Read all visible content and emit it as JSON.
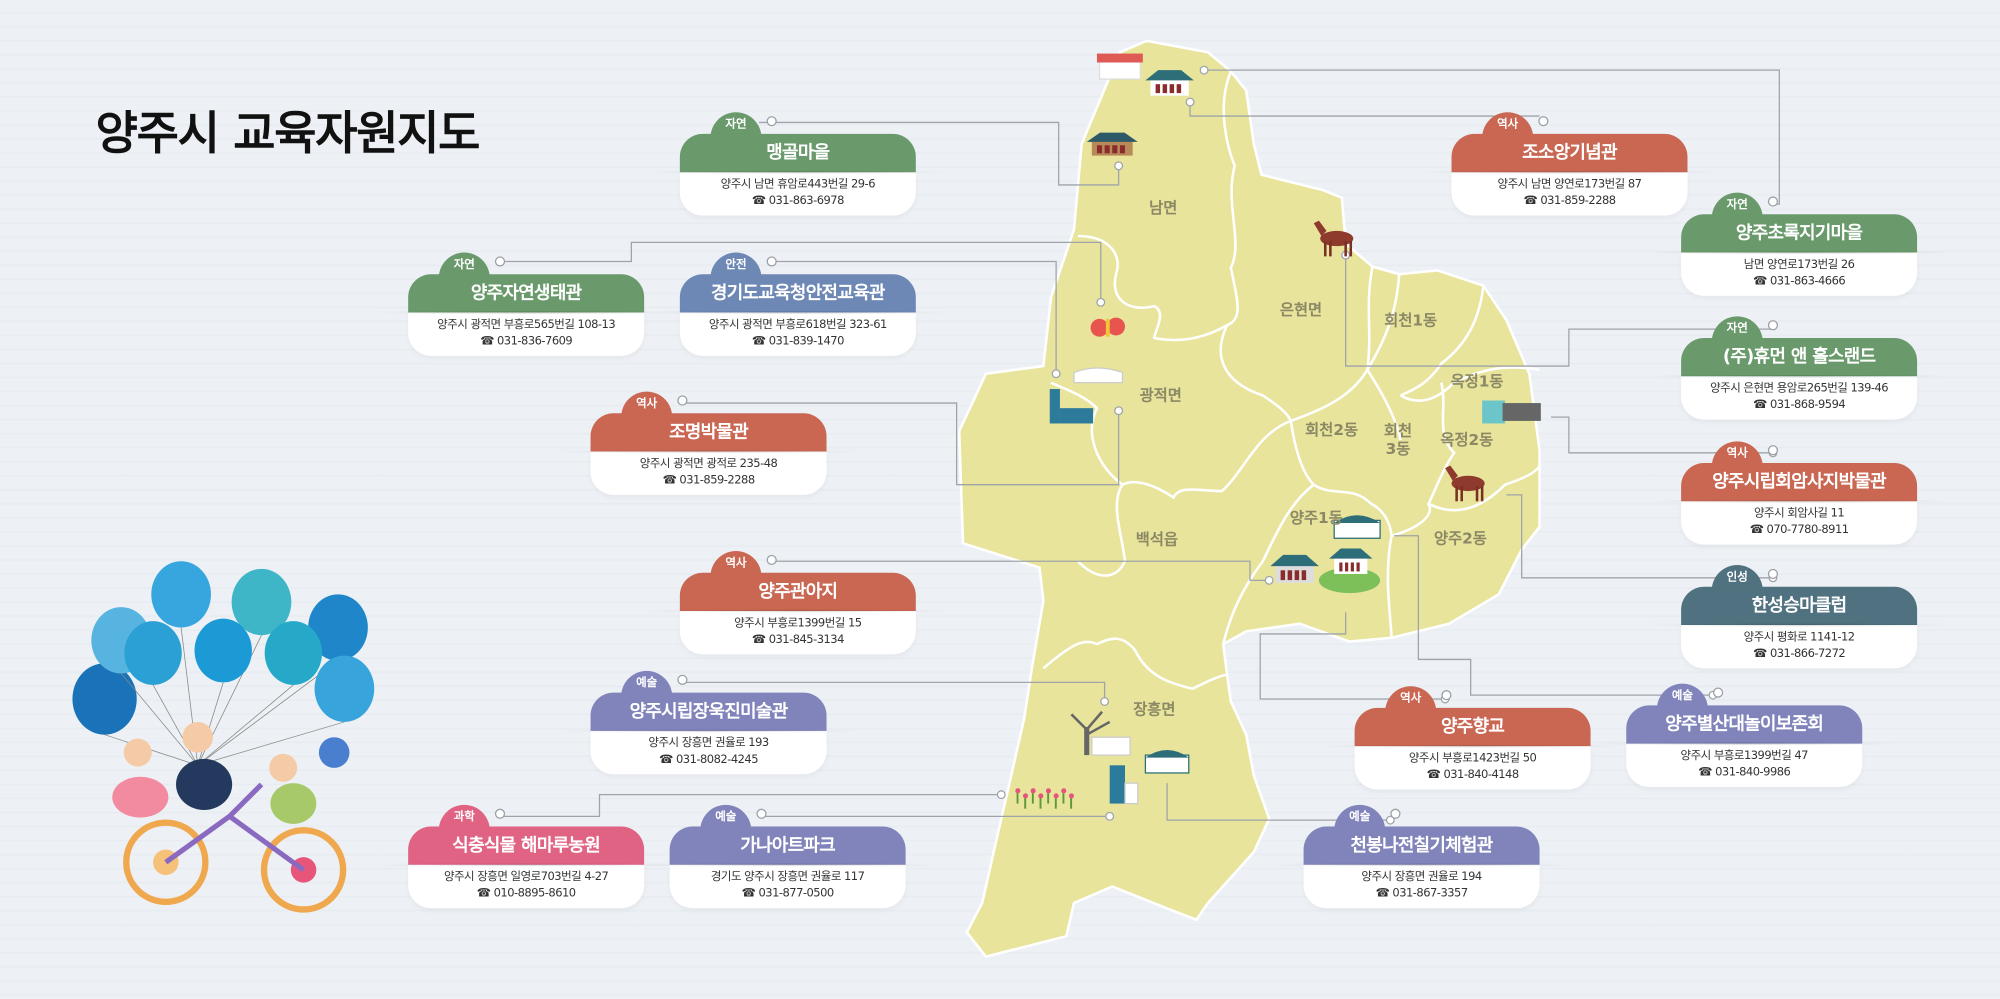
{
  "title": "양주시 교육자원지도",
  "category_colors": {
    "자연": "#6a9a6c",
    "역사": "#c96753",
    "안전": "#6e88b6",
    "예술": "#8184bb",
    "과학": "#e06383",
    "인성": "#50717f"
  },
  "map": {
    "fill_color": "#e8e49b",
    "regions": [
      "남면",
      "은현면",
      "회천1동",
      "광적면",
      "옥정1동",
      "회천2동",
      "회천\n3동",
      "옥정2동",
      "양주1동",
      "양주2동",
      "백석읍",
      "장흥면"
    ]
  },
  "cards": [
    {
      "category": "자연",
      "name": "맹골마을",
      "address": "양주시 남면 휴암로443번길 29-6",
      "phone": "031-863-6978"
    },
    {
      "category": "역사",
      "name": "조소앙기념관",
      "address": "양주시 남면 양연로173번길 87",
      "phone": "031-859-2288"
    },
    {
      "category": "자연",
      "name": "양주초록지기마을",
      "address": "남면 양연로173번길 26",
      "phone": "031-863-4666"
    },
    {
      "category": "자연",
      "name": "양주자연생태관",
      "address": "양주시 광적면 부흥로565번길 108-13",
      "phone": "031-836-7609"
    },
    {
      "category": "안전",
      "name": "경기도교육청안전교육관",
      "address": "양주시 광적면 부흥로618번길 323-61",
      "phone": "031-839-1470"
    },
    {
      "category": "자연",
      "name": "(주)휴먼 앤 홀스랜드",
      "address": "양주시 은현면 용암로265번길 139-46",
      "phone": "031-868-9594"
    },
    {
      "category": "역사",
      "name": "조명박물관",
      "address": "양주시 광적면 광적로 235-48",
      "phone": "031-859-2288"
    },
    {
      "category": "역사",
      "name": "양주시립회암사지박물관",
      "address": "양주시 회암사길 11",
      "phone": "070-7780-8911"
    },
    {
      "category": "역사",
      "name": "양주관아지",
      "address": "양주시 부흥로1399번길 15",
      "phone": "031-845-3134"
    },
    {
      "category": "인성",
      "name": "한성승마클럽",
      "address": "양주시 평화로 1141-12",
      "phone": "031-866-7272"
    },
    {
      "category": "예술",
      "name": "양주시립장욱진미술관",
      "address": "양주시 장흥면 권율로 193",
      "phone": "031-8082-4245"
    },
    {
      "category": "역사",
      "name": "양주향교",
      "address": "양주시 부흥로1423번길 50",
      "phone": "031-840-4148"
    },
    {
      "category": "예술",
      "name": "양주별산대놀이보존회",
      "address": "양주시 부흥로1399번길 47",
      "phone": "031-840-9986"
    },
    {
      "category": "과학",
      "name": "식충식물 해마루농원",
      "address": "양주시 장흥면 일영로703번길 4-27",
      "phone": "010-8895-8610"
    },
    {
      "category": "예술",
      "name": "가나아트파크",
      "address": "경기도 양주시 장흥면 권율로 117",
      "phone": "031-877-0500"
    },
    {
      "category": "예술",
      "name": "천봉나전칠기체험관",
      "address": "양주시 장흥면 권율로 194",
      "phone": "031-867-3357"
    }
  ],
  "phone_icon": "☎",
  "icons": [
    "hanok-village-icon",
    "palace-icon",
    "traditional-house-icon",
    "horse-icon",
    "butterfly-icon",
    "museum-building-icon",
    "glass-building-icon",
    "hanok-gate-icon",
    "observatory-building-icon",
    "tree-gallery-icon",
    "flower-garden-icon",
    "art-park-icon",
    "balloons-icon",
    "kids-on-bicycle-icon"
  ]
}
